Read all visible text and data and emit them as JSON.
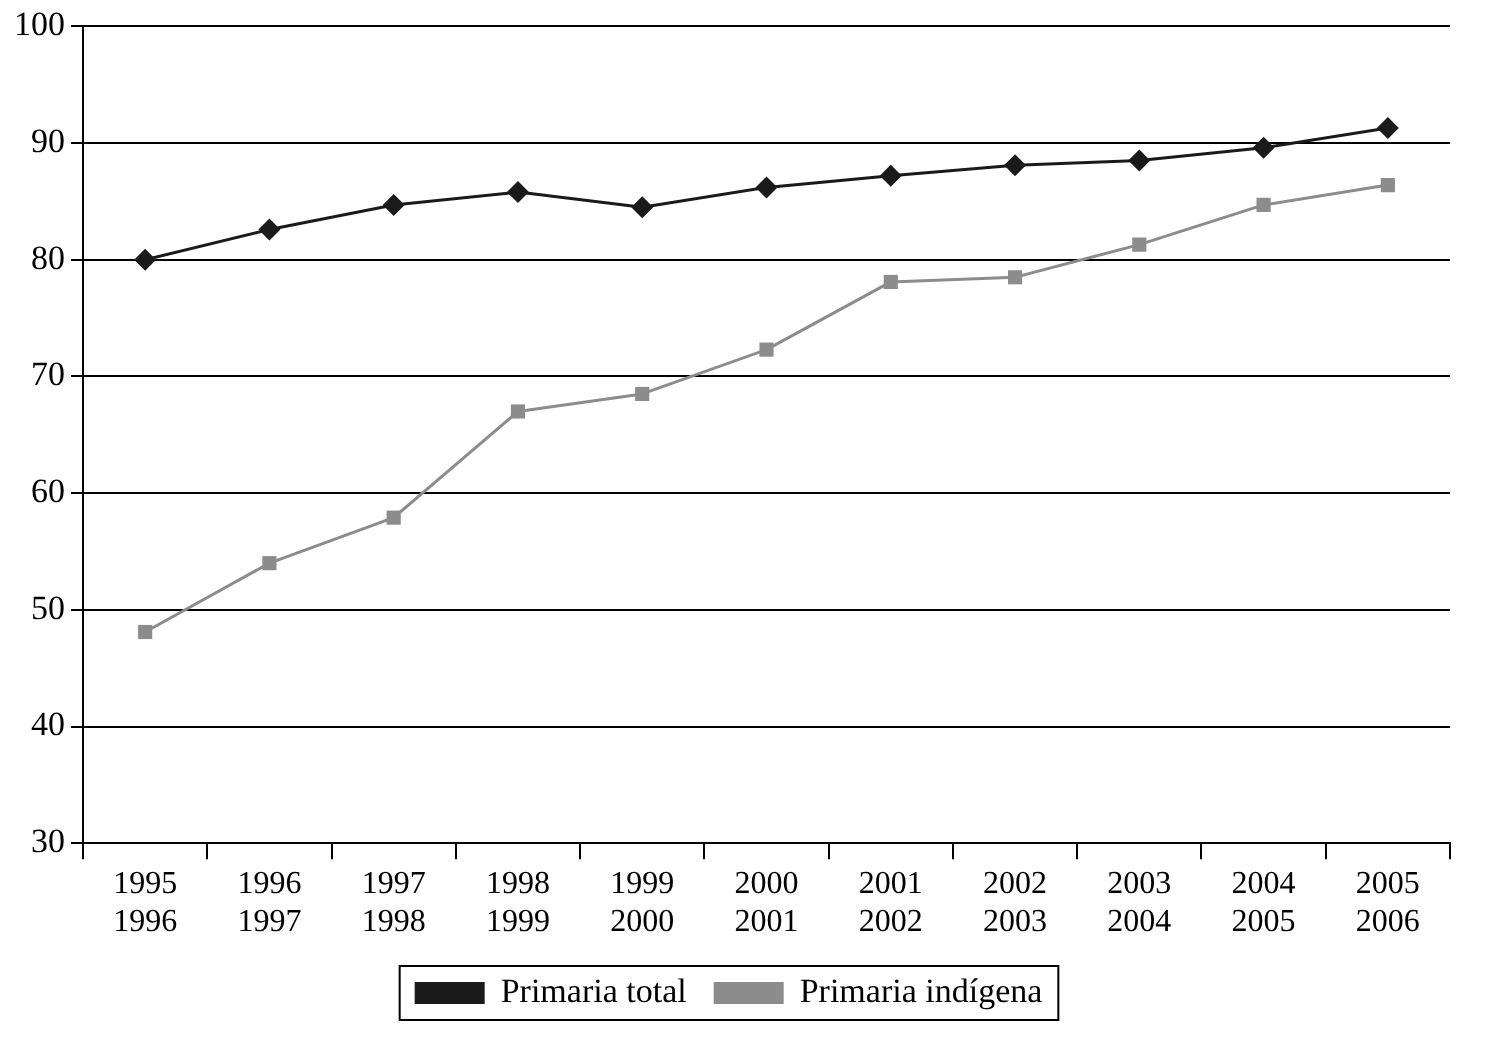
{
  "chart_data": {
    "type": "line",
    "categories": [
      "1995\n1996",
      "1996\n1997",
      "1997\n1998",
      "1998\n1999",
      "1999\n2000",
      "2000\n2001",
      "2001\n2002",
      "2002\n2003",
      "2003\n2004",
      "2004\n2005",
      "2005\n2006"
    ],
    "series": [
      {
        "name": "Primaria total",
        "color": "#1a1a1a",
        "marker": "diamond",
        "values": [
          80.0,
          82.6,
          84.7,
          85.8,
          84.5,
          86.2,
          87.2,
          88.1,
          88.5,
          89.6,
          91.3
        ]
      },
      {
        "name": "Primaria indígena",
        "color": "#8c8c8c",
        "marker": "square",
        "values": [
          48.1,
          54.0,
          57.9,
          67.0,
          68.5,
          72.3,
          78.1,
          78.5,
          81.3,
          84.7,
          86.4
        ]
      }
    ],
    "ylim": [
      30,
      100
    ],
    "yticks": [
      30,
      40,
      50,
      60,
      70,
      80,
      90,
      100
    ],
    "grid": "y",
    "legend": "bottom",
    "line_style": "solid"
  }
}
